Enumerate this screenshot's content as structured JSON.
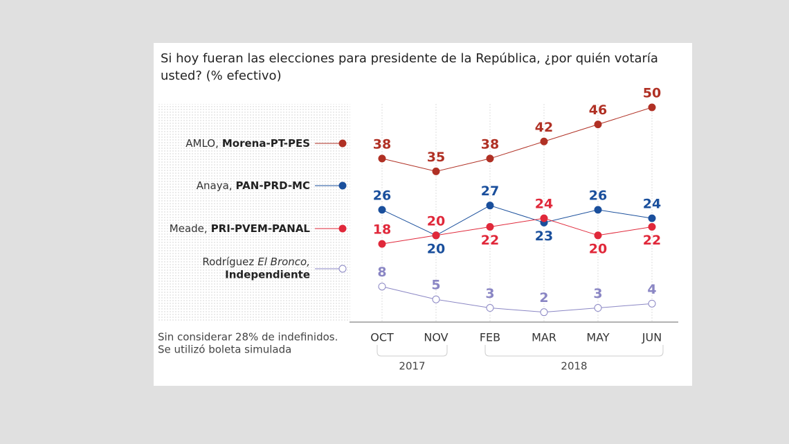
{
  "chart_data": {
    "type": "line",
    "title": "Si hoy fueran las elecciones para presidente de la República, ¿por quién votaría usted? (% efectivo)",
    "note": [
      "Sin considerar 28% de indefinidos.",
      "Se utilizó boleta simulada"
    ],
    "categories": [
      "OCT",
      "NOV",
      "FEB",
      "MAR",
      "MAY",
      "JUN"
    ],
    "year_groups": [
      {
        "label": "2017",
        "start": 0,
        "end": 1
      },
      {
        "label": "2018",
        "start": 2,
        "end": 5
      }
    ],
    "series": [
      {
        "name": "AMLO,",
        "party": "Morena-PT-PES",
        "color": "#b03024",
        "values": [
          38,
          35,
          38,
          42,
          46,
          50
        ]
      },
      {
        "name": "Anaya,",
        "party": "PAN-PRD-MC",
        "color": "#1a4f9c",
        "values": [
          26,
          20,
          27,
          23,
          26,
          24
        ]
      },
      {
        "name": "Meade,",
        "party": "PRI-PVEM-PANAL",
        "color": "#e0283a",
        "values": [
          18,
          20,
          22,
          24,
          20,
          22
        ]
      },
      {
        "name": "Rodríguez",
        "alias": "El Bronco,",
        "party": "Independiente",
        "color": "#8a86c4",
        "hollow": true,
        "values": [
          8,
          5,
          3,
          2,
          3,
          4
        ]
      }
    ],
    "ylim": [
      0,
      50
    ],
    "grid": true
  }
}
